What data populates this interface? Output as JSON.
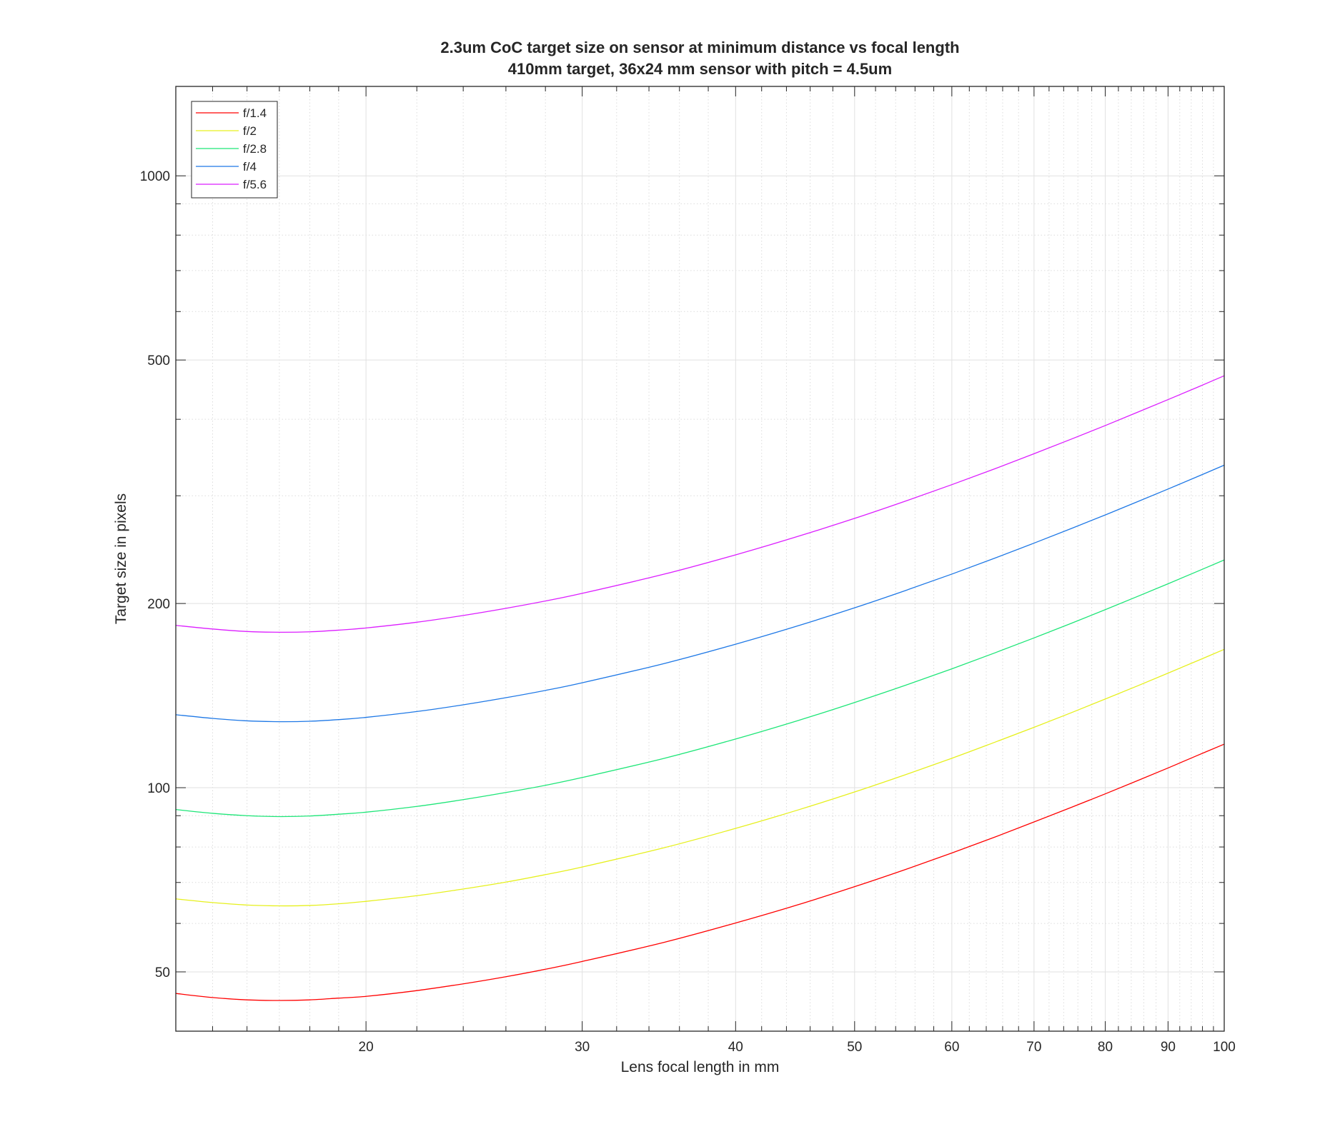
{
  "chart_data": {
    "type": "line",
    "title": "2.3um CoC target size on sensor at minimum distance vs focal length",
    "subtitle": "410mm target, 36x24 mm sensor with pitch = 4.5um",
    "xlabel": "Lens focal length in mm",
    "ylabel": "Target size in pixels",
    "xscale": "log",
    "yscale": "log",
    "xlim": [
      14,
      100
    ],
    "ylim": [
      40,
      1400
    ],
    "xticks": [
      20,
      30,
      40,
      50,
      60,
      70,
      80,
      90,
      100
    ],
    "yticks": [
      50,
      100,
      200,
      500,
      1000
    ],
    "grid": "on (major solid, minor dotted)",
    "legend_position": "top-left",
    "x": [
      14,
      15,
      16,
      17,
      18,
      19,
      20,
      22,
      24,
      26,
      28,
      30,
      35,
      40,
      45,
      50,
      55,
      60,
      65,
      70,
      75,
      80,
      85,
      90,
      95,
      100
    ],
    "series": [
      {
        "name": "f/1.4",
        "color": "#ff0000",
        "values": [
          46.1,
          45.4,
          45.0,
          44.9,
          45.0,
          45.3,
          45.6,
          46.6,
          47.8,
          49.1,
          50.5,
          52.0,
          55.9,
          60.1,
          64.4,
          68.9,
          73.5,
          78.2,
          83.0,
          87.9,
          92.8,
          97.7,
          102.7,
          107.7,
          112.8,
          117.8
        ]
      },
      {
        "name": "f/2",
        "color": "#e6f01e",
        "values": [
          65.8,
          64.9,
          64.3,
          64.1,
          64.2,
          64.6,
          65.2,
          66.6,
          68.3,
          70.1,
          72.1,
          74.2,
          79.8,
          85.8,
          92.0,
          98.4,
          105.0,
          111.7,
          118.6,
          125.5,
          132.5,
          139.6,
          146.7,
          153.9,
          161.1,
          168.3
        ]
      },
      {
        "name": "f/2.8",
        "color": "#1ee678",
        "values": [
          92.1,
          90.8,
          90.0,
          89.7,
          89.9,
          90.5,
          91.2,
          93.2,
          95.6,
          98.2,
          100.9,
          103.9,
          111.7,
          120.1,
          128.8,
          137.8,
          147.0,
          156.4,
          166.0,
          175.7,
          185.5,
          195.4,
          205.4,
          215.4,
          225.5,
          235.6
        ]
      },
      {
        "name": "f/4",
        "color": "#1e78e6",
        "values": [
          131.6,
          129.8,
          128.6,
          128.2,
          128.4,
          129.2,
          130.3,
          133.2,
          136.6,
          140.3,
          144.2,
          148.4,
          159.6,
          171.6,
          184.0,
          196.8,
          210.0,
          223.4,
          237.1,
          251.0,
          265.0,
          279.1,
          293.4,
          307.7,
          322.1,
          336.6
        ]
      },
      {
        "name": "f/5.6",
        "color": "#dc1eff",
        "values": [
          184.2,
          181.7,
          180.0,
          179.5,
          179.8,
          180.9,
          182.4,
          186.4,
          191.2,
          196.4,
          201.9,
          207.8,
          223.4,
          240.2,
          257.6,
          275.5,
          294.0,
          312.8,
          331.9,
          351.4,
          371.0,
          390.7,
          410.8,
          430.8,
          450.9,
          471.2
        ]
      }
    ]
  }
}
